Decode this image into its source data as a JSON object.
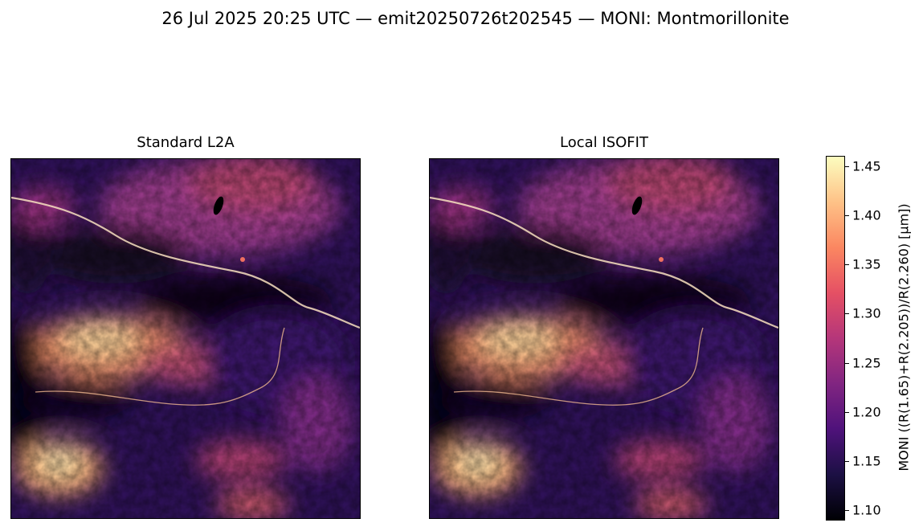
{
  "chart_data": {
    "type": "heatmap",
    "title": "26 Jul 2025 20:25 UTC — emit20250726t202545 — MONI: Montmorillonite",
    "panels": [
      {
        "title": "Standard L2A"
      },
      {
        "title": "Local ISOFIT"
      }
    ],
    "colormap": "magma",
    "colorbar": {
      "label": "MONI  ((R(1.65)+R(2.205))/R(2.260)  [µm])",
      "range": [
        1.09,
        1.46
      ],
      "ticks": [
        1.1,
        1.15,
        1.2,
        1.25,
        1.3,
        1.35,
        1.4,
        1.45
      ],
      "tick_labels": [
        "1.10",
        "1.15",
        "1.20",
        "1.25",
        "1.30",
        "1.35",
        "1.40",
        "1.45"
      ],
      "placement": "right"
    },
    "axes": {
      "ticks_visible": false,
      "grid": false
    }
  }
}
